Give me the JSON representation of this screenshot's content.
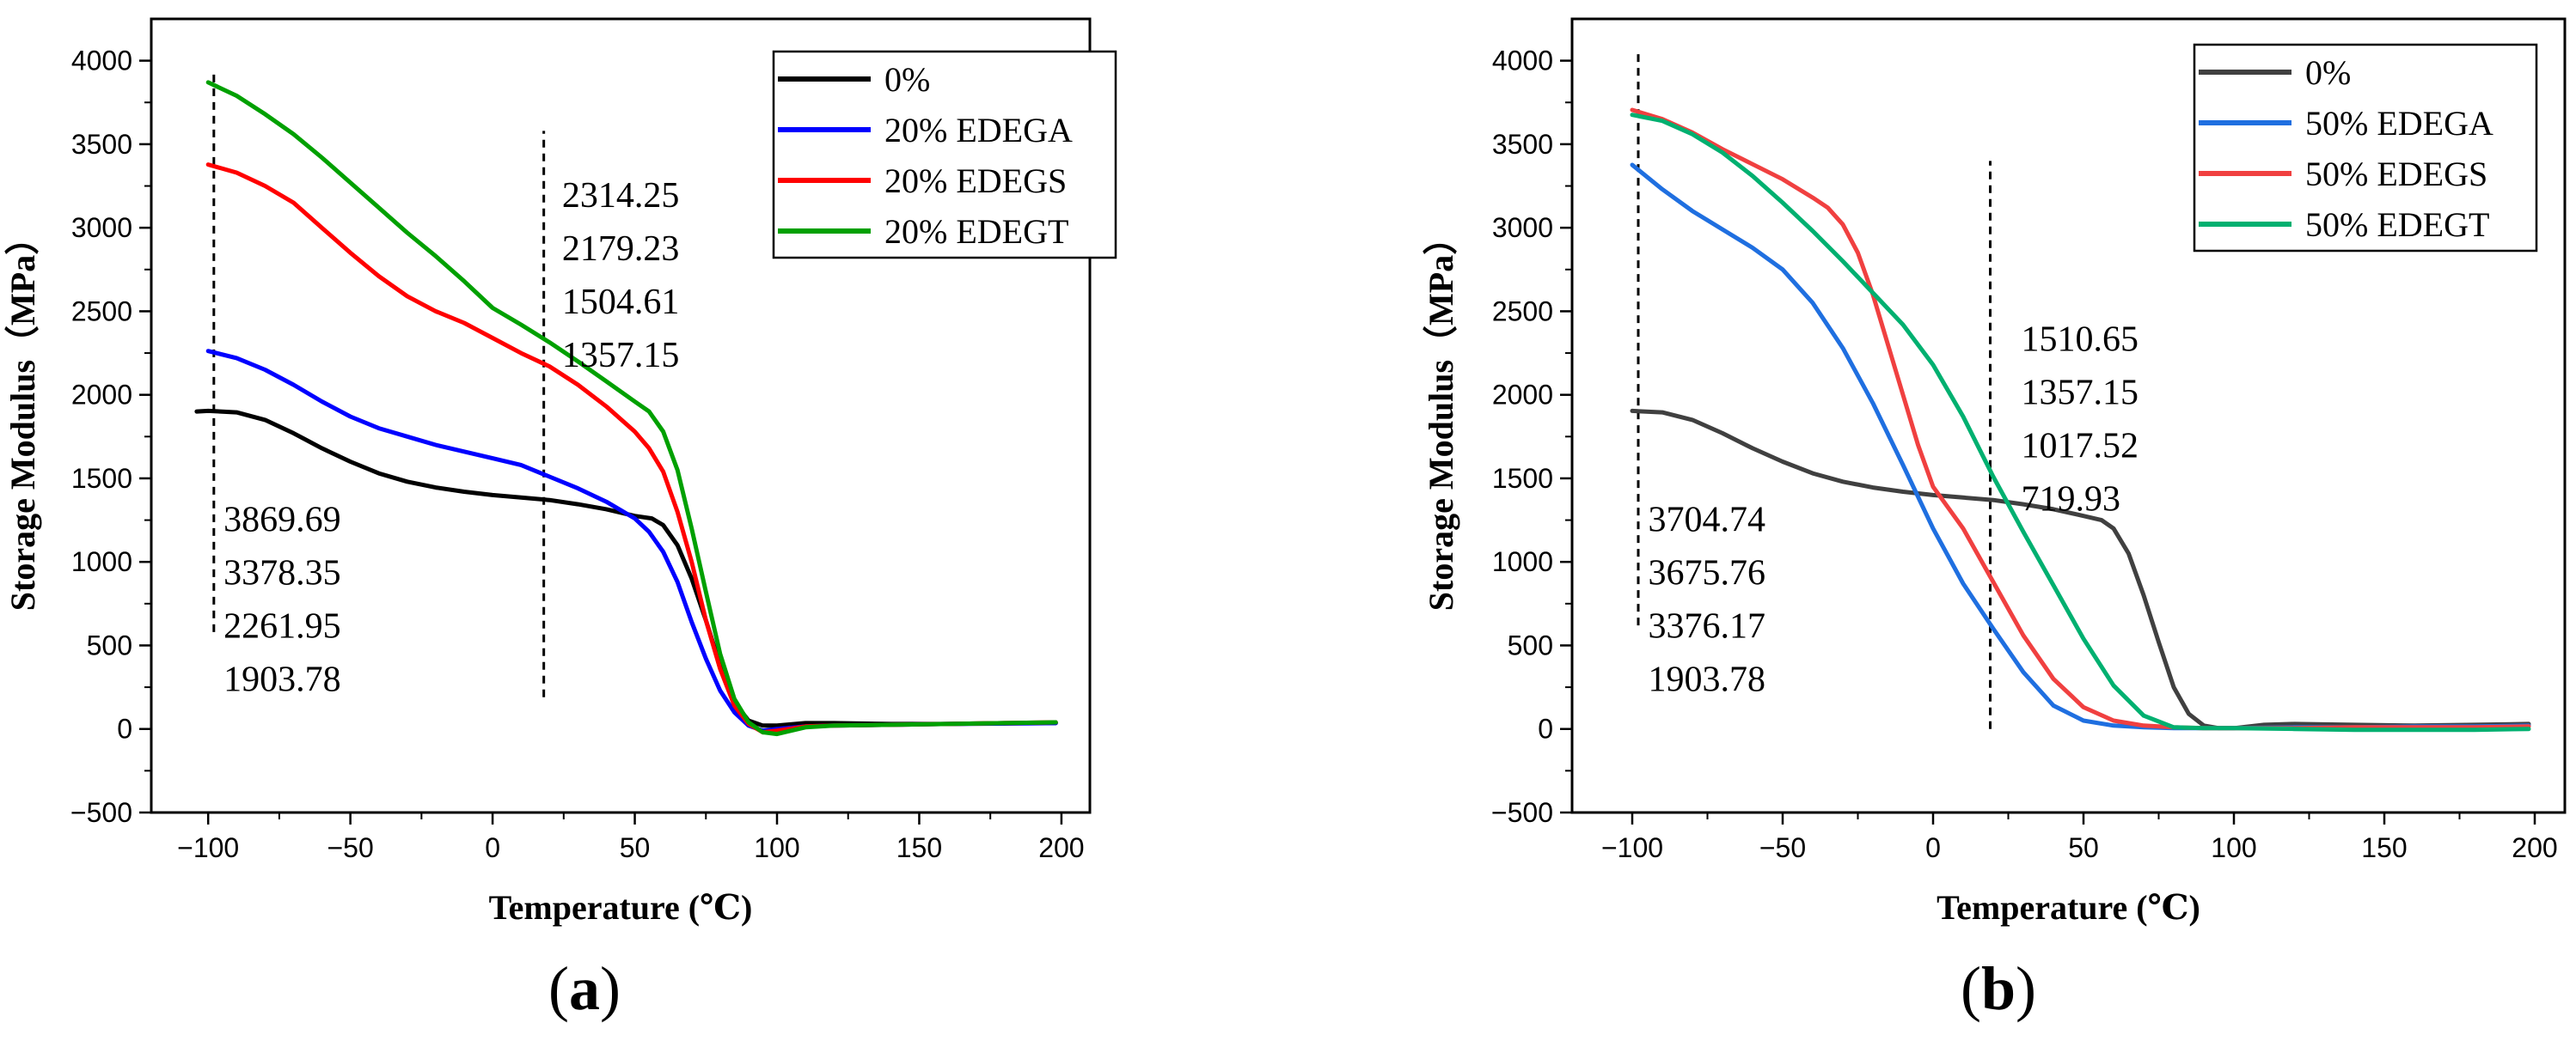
{
  "chart_data": [
    {
      "type": "line",
      "caption_open": "(",
      "caption_letter": "a",
      "caption_close": ")",
      "xlabel": "Temperature (℃)",
      "ylabel": "Storage Modulus（MPa）",
      "xlim": [
        -120,
        210
      ],
      "ylim": [
        -500,
        4250
      ],
      "xticks": [
        -100,
        -50,
        0,
        50,
        100,
        150,
        200
      ],
      "yticks": [
        -500,
        0,
        500,
        1000,
        1500,
        2000,
        2500,
        3000,
        3500,
        4000
      ],
      "xtick_labels": [
        "−100",
        "−50",
        "0",
        "50",
        "100",
        "150",
        "200"
      ],
      "ytick_labels": [
        "−500",
        "0",
        "500",
        "1000",
        "1500",
        "2000",
        "2500",
        "3000",
        "3500",
        "4000"
      ],
      "vlines": [
        {
          "x": -98,
          "y_from": 580,
          "y_to": 3940
        },
        {
          "x": 18,
          "y_from": 190,
          "y_to": 3580
        }
      ],
      "annotations": [
        {
          "anchor": [
            -97,
            1400
          ],
          "lines": [
            "3869.69",
            "3378.35",
            "2261.95",
            "1903.78"
          ]
        },
        {
          "anchor": [
            22,
            3340
          ],
          "lines": [
            "2314.25",
            "2179.23",
            "1504.61",
            "1357.15"
          ]
        }
      ],
      "legend": {
        "position": "top-right"
      },
      "series": [
        {
          "name": "0%",
          "color": "#000000",
          "x": [
            -104,
            -100,
            -90,
            -80,
            -70,
            -60,
            -50,
            -40,
            -30,
            -20,
            -10,
            0,
            10,
            20,
            30,
            40,
            50,
            56,
            60,
            65,
            70,
            75,
            80,
            85,
            90,
            95,
            100,
            110,
            120,
            140,
            160,
            180,
            198
          ],
          "y": [
            1900,
            1904,
            1895,
            1850,
            1770,
            1680,
            1600,
            1530,
            1480,
            1445,
            1420,
            1400,
            1385,
            1370,
            1345,
            1315,
            1275,
            1260,
            1220,
            1100,
            900,
            650,
            380,
            160,
            50,
            20,
            20,
            35,
            35,
            30,
            30,
            35,
            35
          ]
        },
        {
          "name": "20% EDEGA",
          "color": "#0000ff",
          "x": [
            -100,
            -90,
            -80,
            -70,
            -60,
            -50,
            -40,
            -30,
            -20,
            -10,
            0,
            10,
            20,
            30,
            40,
            50,
            55,
            60,
            65,
            70,
            75,
            80,
            85,
            90,
            95,
            100,
            110,
            120,
            140,
            160,
            180,
            198
          ],
          "y": [
            2262,
            2220,
            2150,
            2060,
            1960,
            1870,
            1800,
            1750,
            1700,
            1660,
            1620,
            1580,
            1510,
            1440,
            1360,
            1260,
            1180,
            1060,
            880,
            640,
            420,
            230,
            100,
            20,
            -10,
            0,
            15,
            20,
            25,
            30,
            32,
            35
          ]
        },
        {
          "name": "20% EDEGS",
          "color": "#ff0000",
          "x": [
            -100,
            -90,
            -80,
            -70,
            -60,
            -50,
            -40,
            -30,
            -20,
            -10,
            0,
            10,
            20,
            30,
            40,
            50,
            55,
            60,
            65,
            70,
            75,
            80,
            85,
            90,
            95,
            100,
            110,
            120,
            140,
            160,
            180,
            198
          ],
          "y": [
            3378,
            3330,
            3250,
            3150,
            3000,
            2850,
            2710,
            2590,
            2500,
            2430,
            2340,
            2250,
            2170,
            2060,
            1930,
            1780,
            1680,
            1540,
            1300,
            1000,
            650,
            360,
            140,
            30,
            -20,
            -10,
            15,
            20,
            25,
            30,
            35,
            40
          ]
        },
        {
          "name": "20% EDEGT",
          "color": "#00a000",
          "x": [
            -100,
            -90,
            -80,
            -70,
            -60,
            -50,
            -40,
            -30,
            -20,
            -10,
            0,
            10,
            20,
            30,
            40,
            50,
            55,
            60,
            65,
            70,
            75,
            80,
            85,
            90,
            95,
            100,
            110,
            120,
            140,
            160,
            180,
            198
          ],
          "y": [
            3870,
            3790,
            3680,
            3560,
            3420,
            3270,
            3120,
            2970,
            2830,
            2680,
            2520,
            2420,
            2314,
            2200,
            2080,
            1960,
            1900,
            1780,
            1550,
            1200,
            820,
            450,
            180,
            40,
            -20,
            -30,
            10,
            20,
            25,
            30,
            35,
            40
          ]
        }
      ]
    },
    {
      "type": "line",
      "caption_open": "(",
      "caption_letter": "b",
      "caption_close": ")",
      "xlabel": "Temperature (℃)",
      "ylabel": "Storage Modulus（MPa）",
      "xlim": [
        -120,
        210
      ],
      "ylim": [
        -500,
        4250
      ],
      "xticks": [
        -100,
        -50,
        0,
        50,
        100,
        150,
        200
      ],
      "yticks": [
        -500,
        0,
        500,
        1000,
        1500,
        2000,
        2500,
        3000,
        3500,
        4000
      ],
      "xtick_labels": [
        "−100",
        "−50",
        "0",
        "50",
        "100",
        "150",
        "200"
      ],
      "ytick_labels": [
        "−500",
        "0",
        "500",
        "1000",
        "1500",
        "2000",
        "2500",
        "3000",
        "3500",
        "4000"
      ],
      "vlines": [
        {
          "x": -98,
          "y_from": 620,
          "y_to": 4040
        },
        {
          "x": 19,
          "y_from": 0,
          "y_to": 3400
        }
      ],
      "annotations": [
        {
          "anchor": [
            -97,
            1400
          ],
          "lines": [
            "3704.74",
            "3675.76",
            "3376.17",
            "1903.78"
          ]
        },
        {
          "anchor": [
            27,
            2480
          ],
          "lines": [
            "1510.65",
            "1357.15",
            "1017.52",
            "719.93"
          ]
        }
      ],
      "legend": {
        "position": "top-right"
      },
      "series": [
        {
          "name": "0%",
          "color": "#404040",
          "x": [
            -100,
            -90,
            -80,
            -70,
            -60,
            -50,
            -40,
            -30,
            -20,
            -10,
            0,
            10,
            20,
            30,
            40,
            50,
            56,
            60,
            65,
            70,
            75,
            80,
            85,
            90,
            95,
            100,
            110,
            120,
            140,
            160,
            180,
            198
          ],
          "y": [
            1904,
            1895,
            1850,
            1770,
            1680,
            1600,
            1530,
            1480,
            1445,
            1420,
            1400,
            1385,
            1370,
            1345,
            1315,
            1275,
            1250,
            1200,
            1050,
            800,
            520,
            250,
            90,
            20,
            5,
            5,
            25,
            30,
            25,
            20,
            25,
            30
          ]
        },
        {
          "name": "50% EDEGA",
          "color": "#1f6fe0",
          "x": [
            -100,
            -90,
            -80,
            -70,
            -60,
            -50,
            -40,
            -30,
            -20,
            -10,
            0,
            10,
            20,
            30,
            40,
            50,
            60,
            70,
            80,
            90,
            100,
            120,
            140,
            160,
            180,
            198
          ],
          "y": [
            3376,
            3230,
            3100,
            2990,
            2880,
            2750,
            2550,
            2280,
            1950,
            1580,
            1200,
            870,
            600,
            340,
            140,
            50,
            20,
            10,
            5,
            5,
            5,
            10,
            10,
            15,
            15,
            20
          ]
        },
        {
          "name": "50% EDEGS",
          "color": "#f04040",
          "x": [
            -100,
            -90,
            -80,
            -70,
            -60,
            -50,
            -40,
            -35,
            -30,
            -25,
            -20,
            -15,
            -10,
            -5,
            0,
            10,
            20,
            30,
            40,
            50,
            60,
            70,
            80,
            90,
            100,
            120,
            140,
            160,
            180,
            198
          ],
          "y": [
            3705,
            3650,
            3570,
            3470,
            3380,
            3290,
            3180,
            3120,
            3020,
            2850,
            2600,
            2300,
            2000,
            1700,
            1450,
            1200,
            880,
            560,
            300,
            130,
            50,
            20,
            10,
            5,
            5,
            5,
            10,
            10,
            10,
            15
          ]
        },
        {
          "name": "50% EDEGT",
          "color": "#00b070",
          "x": [
            -100,
            -90,
            -80,
            -70,
            -60,
            -50,
            -40,
            -30,
            -20,
            -10,
            0,
            10,
            20,
            30,
            40,
            50,
            60,
            70,
            80,
            90,
            100,
            120,
            140,
            160,
            180,
            198
          ],
          "y": [
            3676,
            3640,
            3560,
            3450,
            3310,
            3150,
            2980,
            2800,
            2610,
            2420,
            2180,
            1870,
            1510,
            1180,
            860,
            540,
            260,
            80,
            10,
            5,
            5,
            0,
            -5,
            -5,
            -5,
            0
          ]
        }
      ]
    }
  ]
}
